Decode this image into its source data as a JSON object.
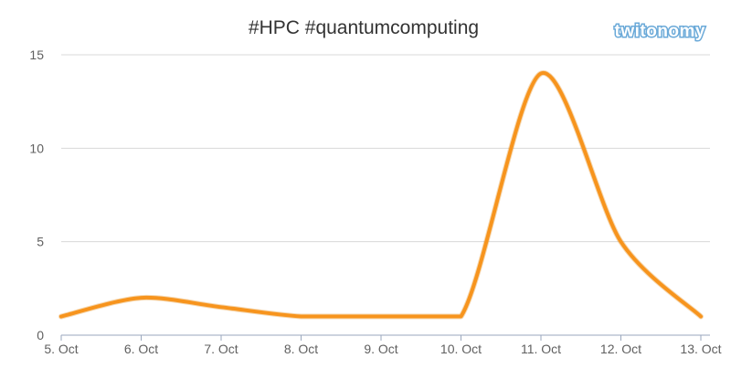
{
  "chart_data": {
    "type": "line",
    "title": "#HPC #quantumcomputing",
    "xlabel": "",
    "ylabel": "",
    "categories": [
      "5. Oct",
      "6. Oct",
      "7. Oct",
      "8. Oct",
      "9. Oct",
      "10. Oct",
      "11. Oct",
      "12. Oct",
      "13. Oct"
    ],
    "series": [
      {
        "values": [
          1,
          2,
          1.5,
          1,
          1,
          1,
          14,
          5,
          1
        ]
      }
    ],
    "ylim": [
      0,
      15
    ],
    "yticks": [
      0,
      5,
      10,
      15
    ],
    "grid": true,
    "smooth": true
  },
  "colors": {
    "series": "#f7941d",
    "series_outline": "#e38c1a",
    "grid": "#d8d8d8",
    "axis": "#9aa7bd"
  },
  "watermark": {
    "text": "twitonomy"
  }
}
